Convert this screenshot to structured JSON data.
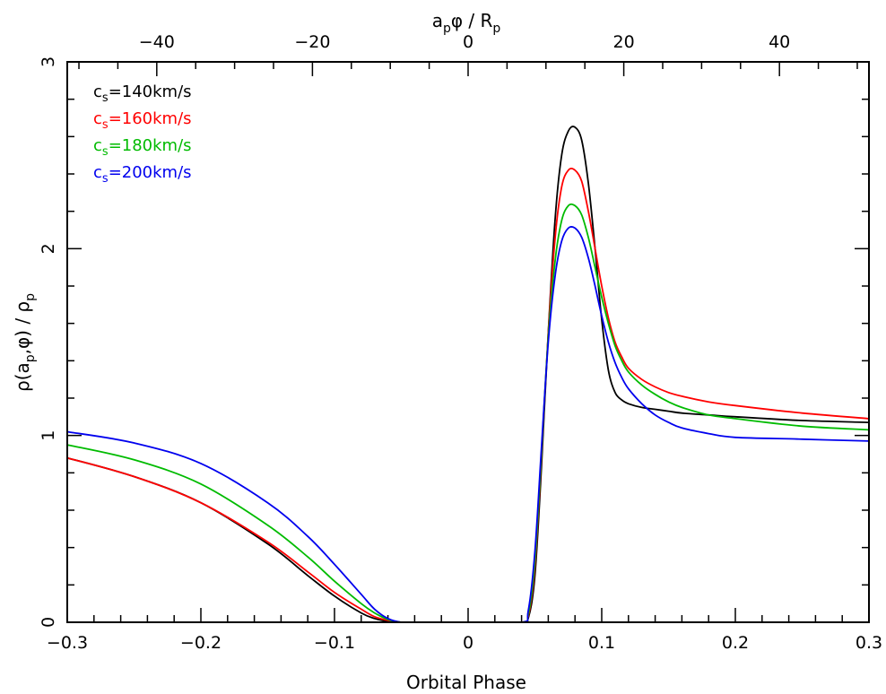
{
  "chart_data": {
    "type": "line",
    "title": "",
    "xlabel": "Orbital Phase",
    "ylabel": "ρ(a_p,φ) / ρ_p",
    "top_xlabel": "a_p φ / R_p",
    "xlim": [
      -0.3,
      0.3
    ],
    "ylim": [
      0,
      3
    ],
    "top_xlim": [
      -51.5,
      51.5
    ],
    "x_ticks": [
      "-0.3",
      "-0.2",
      "-0.1",
      "0",
      "0.1",
      "0.2",
      "0.3"
    ],
    "top_x_ticks": [
      "-40",
      "-20",
      "0",
      "20",
      "40"
    ],
    "y_ticks": [
      "0",
      "1",
      "2",
      "3"
    ],
    "grid": false,
    "legend_position": "upper-left",
    "x": [
      -0.3,
      -0.25,
      -0.2,
      -0.15,
      -0.12,
      -0.1,
      -0.08,
      -0.07,
      -0.06,
      -0.05,
      -0.04,
      0.0,
      0.04,
      0.045,
      0.05,
      0.055,
      0.06,
      0.065,
      0.07,
      0.075,
      0.08,
      0.085,
      0.09,
      0.095,
      0.1,
      0.105,
      0.11,
      0.115,
      0.12,
      0.13,
      0.14,
      0.15,
      0.16,
      0.18,
      0.2,
      0.25,
      0.3
    ],
    "series": [
      {
        "name": "c_s=140km/s",
        "color": "#000000",
        "values": [
          0.88,
          0.78,
          0.64,
          0.42,
          0.25,
          0.14,
          0.05,
          0.02,
          0.005,
          0.0,
          0.0,
          0.0,
          0.0,
          0.02,
          0.25,
          0.85,
          1.55,
          2.15,
          2.5,
          2.63,
          2.65,
          2.58,
          2.35,
          2.0,
          1.62,
          1.35,
          1.23,
          1.19,
          1.17,
          1.15,
          1.14,
          1.13,
          1.12,
          1.11,
          1.1,
          1.08,
          1.07
        ]
      },
      {
        "name": "c_s=160km/s",
        "color": "#ff0000",
        "values": [
          0.88,
          0.78,
          0.64,
          0.43,
          0.27,
          0.16,
          0.07,
          0.03,
          0.01,
          0.0,
          0.0,
          0.0,
          0.0,
          0.03,
          0.3,
          0.9,
          1.55,
          2.05,
          2.33,
          2.42,
          2.42,
          2.36,
          2.2,
          2.0,
          1.8,
          1.63,
          1.5,
          1.42,
          1.36,
          1.3,
          1.26,
          1.23,
          1.21,
          1.18,
          1.16,
          1.12,
          1.09
        ]
      },
      {
        "name": "c_s=180km/s",
        "color": "#00bb00",
        "values": [
          0.95,
          0.87,
          0.74,
          0.52,
          0.35,
          0.22,
          0.1,
          0.05,
          0.015,
          0.0,
          0.0,
          0.0,
          0.0,
          0.04,
          0.33,
          0.92,
          1.53,
          1.93,
          2.15,
          2.23,
          2.23,
          2.18,
          2.06,
          1.9,
          1.74,
          1.6,
          1.48,
          1.4,
          1.34,
          1.27,
          1.22,
          1.18,
          1.15,
          1.11,
          1.09,
          1.05,
          1.03
        ]
      },
      {
        "name": "c_s=200km/s",
        "color": "#0000ee",
        "values": [
          1.02,
          0.96,
          0.85,
          0.64,
          0.46,
          0.31,
          0.15,
          0.07,
          0.02,
          0.0,
          0.0,
          0.0,
          0.0,
          0.06,
          0.38,
          0.95,
          1.5,
          1.85,
          2.04,
          2.11,
          2.11,
          2.06,
          1.95,
          1.8,
          1.64,
          1.5,
          1.39,
          1.31,
          1.25,
          1.17,
          1.11,
          1.07,
          1.04,
          1.01,
          0.99,
          0.98,
          0.97
        ]
      }
    ]
  },
  "legend": {
    "items": [
      {
        "prefix": "c",
        "sub": "s",
        "suffix": "=140km/s",
        "color": "#000000"
      },
      {
        "prefix": "c",
        "sub": "s",
        "suffix": "=160km/s",
        "color": "#ff0000"
      },
      {
        "prefix": "c",
        "sub": "s",
        "suffix": "=180km/s",
        "color": "#00bb00"
      },
      {
        "prefix": "c",
        "sub": "s",
        "suffix": "=200km/s",
        "color": "#0000ee"
      }
    ]
  },
  "axes": {
    "bottom_title": "Orbital Phase",
    "top_title_parts": [
      "a",
      "p",
      "φ / R",
      "p"
    ],
    "left_title_parts": [
      "ρ(a",
      "p",
      ",φ) / ρ",
      "p"
    ]
  }
}
